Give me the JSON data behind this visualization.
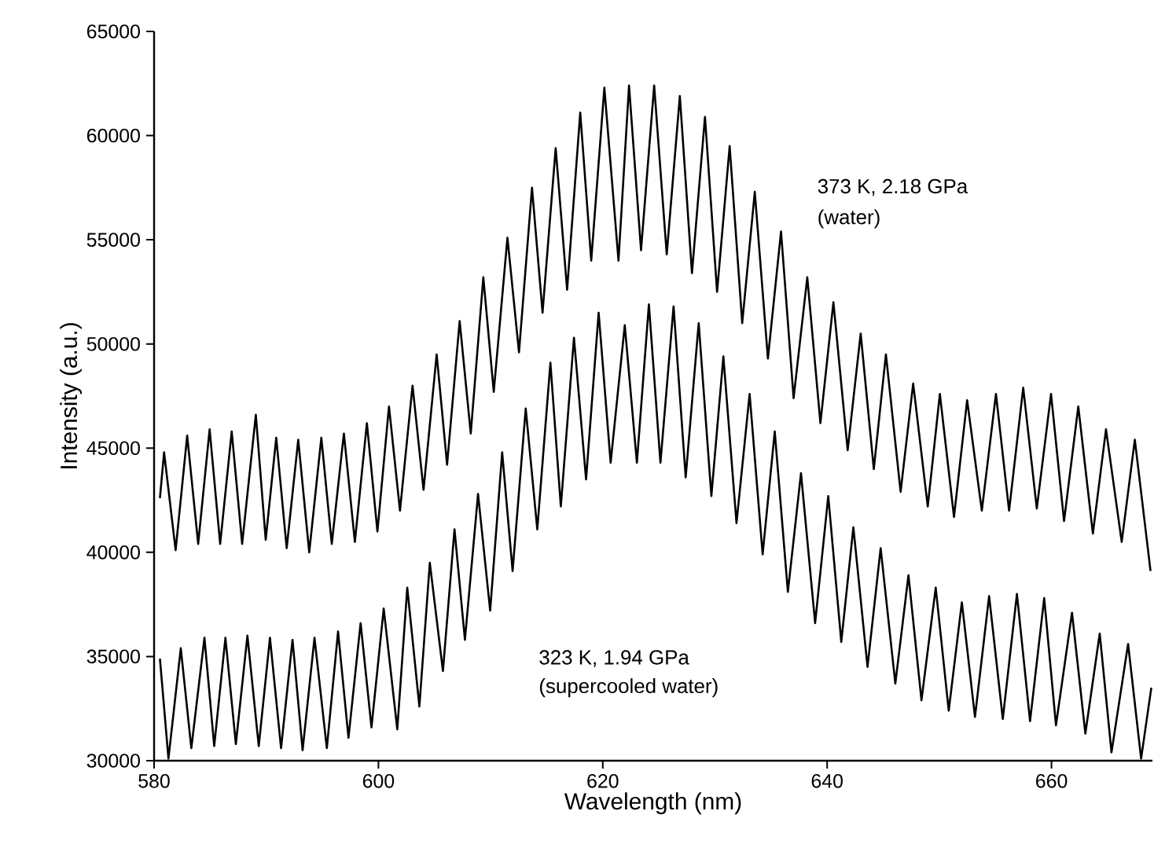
{
  "chart_data": {
    "type": "line",
    "xlabel": "Wavelength (nm)",
    "ylabel": "Intensity (a.u.)",
    "xlim": [
      580,
      669
    ],
    "ylim": [
      30000,
      65000
    ],
    "xticks": [
      580,
      600,
      620,
      640,
      660
    ],
    "yticks": [
      30000,
      35000,
      40000,
      45000,
      50000,
      55000,
      60000,
      65000
    ],
    "series": [
      {
        "color": "#000000",
        "x": [
          580.52,
          580.89,
          581.92,
          582.95,
          583.93,
          584.95,
          585.89,
          586.92,
          587.85,
          589.07,
          589.95,
          590.89,
          591.82,
          592.85,
          593.83,
          594.91,
          595.84,
          596.92,
          597.9,
          598.97,
          599.91,
          600.94,
          601.92,
          603.04,
          604.02,
          605.19,
          606.12,
          607.24,
          608.23,
          609.35,
          610.28,
          611.5,
          612.53,
          613.69,
          614.63,
          615.8,
          616.82,
          617.99,
          618.97,
          620.14,
          621.4,
          622.34,
          623.41,
          624.58,
          625.7,
          626.87,
          627.95,
          629.11,
          630.19,
          631.31,
          632.43,
          633.55,
          634.72,
          635.89,
          637.01,
          638.23,
          639.4,
          640.56,
          641.83,
          642.99,
          644.16,
          645.24,
          646.55,
          647.67,
          648.97,
          650.05,
          651.31,
          652.48,
          653.79,
          655.05,
          656.22,
          657.48,
          658.69,
          659.96,
          661.12,
          662.39,
          663.69,
          664.86,
          666.26,
          667.43,
          668.83
        ],
        "values": [
          42600,
          44800,
          40100,
          45600,
          40400,
          45900,
          40400,
          45800,
          40400,
          46600,
          40600,
          45500,
          40200,
          45400,
          40000,
          45500,
          40400,
          45700,
          40500,
          46200,
          41000,
          47000,
          42000,
          48000,
          43000,
          49500,
          44200,
          51100,
          45700,
          53200,
          47700,
          55100,
          49600,
          57500,
          51500,
          59400,
          52600,
          61100,
          54000,
          62300,
          54000,
          62400,
          54500,
          62400,
          54300,
          61900,
          53400,
          60900,
          52500,
          59500,
          51000,
          57300,
          49300,
          55400,
          47400,
          53200,
          46200,
          52000,
          44900,
          50500,
          44000,
          49500,
          42900,
          48100,
          42200,
          47600,
          41700,
          47300,
          42000,
          47600,
          42000,
          47900,
          42100,
          47600,
          41500,
          47000,
          40900,
          45900,
          40500,
          45400,
          39100
        ]
      },
      {
        "color": "#000000",
        "x": [
          580.52,
          581.28,
          582.38,
          583.32,
          584.49,
          585.36,
          586.36,
          587.29,
          588.32,
          589.33,
          590.33,
          591.32,
          592.34,
          593.24,
          594.3,
          595.4,
          596.4,
          597.33,
          598.41,
          599.38,
          600.47,
          601.68,
          602.57,
          603.65,
          604.58,
          605.75,
          606.78,
          607.71,
          608.88,
          609.96,
          611.03,
          611.96,
          613.13,
          614.16,
          615.33,
          616.26,
          617.43,
          618.51,
          619.63,
          620.7,
          621.96,
          623.04,
          624.11,
          625.14,
          626.31,
          627.39,
          628.55,
          629.68,
          630.75,
          631.92,
          633.09,
          634.25,
          635.33,
          636.5,
          637.67,
          638.93,
          640.1,
          641.26,
          642.34,
          643.6,
          644.77,
          646.08,
          647.25,
          648.41,
          649.68,
          650.84,
          652.01,
          653.18,
          654.44,
          655.66,
          656.92,
          658.09,
          659.35,
          660.4,
          661.83,
          663.02,
          664.3,
          665.35,
          666.83,
          667.99,
          668.9
        ],
        "values": [
          34900,
          30100,
          35400,
          30600,
          35900,
          30700,
          35900,
          30800,
          36000,
          30700,
          35900,
          30600,
          35800,
          30500,
          35900,
          30600,
          36200,
          31100,
          36600,
          31600,
          37300,
          31500,
          38300,
          32600,
          39500,
          34300,
          41100,
          35800,
          42800,
          37200,
          44800,
          39100,
          46900,
          41100,
          49100,
          42200,
          50300,
          43500,
          51500,
          44300,
          50900,
          44300,
          51900,
          44300,
          51800,
          43600,
          51000,
          42700,
          49400,
          41400,
          47600,
          39900,
          45800,
          38100,
          43800,
          36600,
          42700,
          35700,
          41200,
          34500,
          40200,
          33700,
          38900,
          32900,
          38300,
          32400,
          37600,
          32100,
          37900,
          32000,
          38000,
          31900,
          37800,
          31700,
          37100,
          31300,
          36100,
          30400,
          35600,
          30100,
          33500
        ]
      }
    ],
    "annotations": [
      "373 K, 2.18 GPa",
      "(water)",
      "323 K, 1.94 GPa",
      "(supercooled water)"
    ]
  }
}
